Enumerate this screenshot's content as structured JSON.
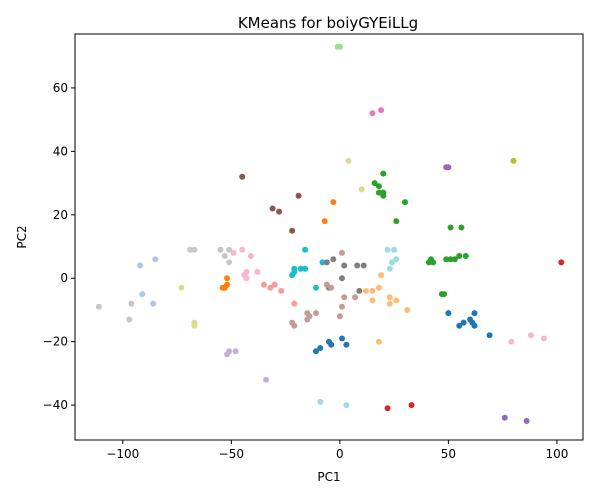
{
  "chart_data": {
    "type": "scatter",
    "title": "KMeans for boiyGYEiLLg",
    "xlabel": "PC1",
    "ylabel": "PC2",
    "xlim": [
      -122,
      112
    ],
    "ylim": [
      -51,
      77
    ],
    "xticks": [
      -100,
      -50,
      0,
      50,
      100
    ],
    "yticks": [
      -40,
      -20,
      0,
      20,
      40,
      60
    ],
    "grid": false,
    "legend": "none",
    "points": [
      {
        "x": -1,
        "y": 73,
        "color": "#98df8a"
      },
      {
        "x": 0,
        "y": 73,
        "color": "#98df8a"
      },
      {
        "x": 15,
        "y": 52,
        "color": "#e377c2"
      },
      {
        "x": 19,
        "y": 53,
        "color": "#e377c2"
      },
      {
        "x": 4,
        "y": 37,
        "color": "#dbdb8d"
      },
      {
        "x": 10,
        "y": 28,
        "color": "#dbdb8d"
      },
      {
        "x": 80,
        "y": 37,
        "color": "#bcbd22"
      },
      {
        "x": -45,
        "y": 32,
        "color": "#8c564b"
      },
      {
        "x": -31,
        "y": 22,
        "color": "#8c564b"
      },
      {
        "x": -28,
        "y": 21,
        "color": "#8c564b"
      },
      {
        "x": -19,
        "y": 26,
        "color": "#8c564b"
      },
      {
        "x": -22,
        "y": 15,
        "color": "#8c564b"
      },
      {
        "x": -3,
        "y": 24,
        "color": "#ff7f0e"
      },
      {
        "x": -7,
        "y": 18,
        "color": "#ff7f0e"
      },
      {
        "x": 49,
        "y": 35,
        "color": "#9467bd"
      },
      {
        "x": 50,
        "y": 35,
        "color": "#9467bd"
      },
      {
        "x": 16,
        "y": 30,
        "color": "#2ca02c"
      },
      {
        "x": 18,
        "y": 29,
        "color": "#2ca02c"
      },
      {
        "x": 20,
        "y": 33,
        "color": "#2ca02c"
      },
      {
        "x": 20,
        "y": 27,
        "color": "#2ca02c"
      },
      {
        "x": 18,
        "y": 27,
        "color": "#2ca02c"
      },
      {
        "x": 20,
        "y": 26,
        "color": "#2ca02c"
      },
      {
        "x": 30,
        "y": 24,
        "color": "#2ca02c"
      },
      {
        "x": 26,
        "y": 18,
        "color": "#2ca02c"
      },
      {
        "x": 51,
        "y": 16,
        "color": "#2ca02c"
      },
      {
        "x": 56,
        "y": 16,
        "color": "#2ca02c"
      },
      {
        "x": 41,
        "y": 5,
        "color": "#2ca02c"
      },
      {
        "x": 43,
        "y": 5,
        "color": "#2ca02c"
      },
      {
        "x": 42,
        "y": 6,
        "color": "#2ca02c"
      },
      {
        "x": 49,
        "y": 6,
        "color": "#2ca02c"
      },
      {
        "x": 51,
        "y": 6,
        "color": "#2ca02c"
      },
      {
        "x": 53,
        "y": 6,
        "color": "#2ca02c"
      },
      {
        "x": 55,
        "y": 7,
        "color": "#2ca02c"
      },
      {
        "x": 58,
        "y": 7,
        "color": "#2ca02c"
      },
      {
        "x": 48,
        "y": -5,
        "color": "#2ca02c"
      },
      {
        "x": 47,
        "y": -5,
        "color": "#2ca02c"
      },
      {
        "x": 102,
        "y": 5,
        "color": "#d62728"
      },
      {
        "x": 22,
        "y": 9,
        "color": "#9edae5"
      },
      {
        "x": 25,
        "y": 9,
        "color": "#9edae5"
      },
      {
        "x": 23,
        "y": 3,
        "color": "#9edae5"
      },
      {
        "x": 24,
        "y": 5,
        "color": "#9edae5"
      },
      {
        "x": 26,
        "y": 6,
        "color": "#9edae5"
      },
      {
        "x": -16,
        "y": 9,
        "color": "#17becf"
      },
      {
        "x": -21,
        "y": 3,
        "color": "#17becf"
      },
      {
        "x": -21,
        "y": 2,
        "color": "#17becf"
      },
      {
        "x": -18,
        "y": 3,
        "color": "#17becf"
      },
      {
        "x": -16,
        "y": 3,
        "color": "#17becf"
      },
      {
        "x": -22,
        "y": 1,
        "color": "#17becf"
      },
      {
        "x": -11,
        "y": -3,
        "color": "#17becf"
      },
      {
        "x": -8,
        "y": 5,
        "color": "#17becf"
      },
      {
        "x": -6,
        "y": 5,
        "color": "#7f7f7f"
      },
      {
        "x": -3,
        "y": 6,
        "color": "#7f7f7f"
      },
      {
        "x": 2,
        "y": 4,
        "color": "#7f7f7f"
      },
      {
        "x": 8,
        "y": 4,
        "color": "#7f7f7f"
      },
      {
        "x": 11,
        "y": 4,
        "color": "#7f7f7f"
      },
      {
        "x": 1,
        "y": 0,
        "color": "#7f7f7f"
      },
      {
        "x": 9,
        "y": -4,
        "color": "#7f7f7f"
      },
      {
        "x": -5,
        "y": -3,
        "color": "#7f7f7f"
      },
      {
        "x": -55,
        "y": 9,
        "color": "#c7c7c7"
      },
      {
        "x": -51,
        "y": 9,
        "color": "#c7c7c7"
      },
      {
        "x": -69,
        "y": 9,
        "color": "#c7c7c7"
      },
      {
        "x": -67,
        "y": 9,
        "color": "#c7c7c7"
      },
      {
        "x": -53,
        "y": 7,
        "color": "#c7c7c7"
      },
      {
        "x": -51,
        "y": 5,
        "color": "#c7c7c7"
      },
      {
        "x": -111,
        "y": -9,
        "color": "#c7c7c7"
      },
      {
        "x": -96,
        "y": -8,
        "color": "#c7c7c7"
      },
      {
        "x": -97,
        "y": -13,
        "color": "#c7c7c7"
      },
      {
        "x": -92,
        "y": 4,
        "color": "#aec7e8"
      },
      {
        "x": -85,
        "y": 6,
        "color": "#aec7e8"
      },
      {
        "x": -91,
        "y": -5,
        "color": "#aec7e8"
      },
      {
        "x": -86,
        "y": -8,
        "color": "#aec7e8"
      },
      {
        "x": -73,
        "y": -3,
        "color": "#dbdb8d"
      },
      {
        "x": -67,
        "y": -14,
        "color": "#dbdb8d"
      },
      {
        "x": -67,
        "y": -15,
        "color": "#dbdb8d"
      },
      {
        "x": -54,
        "y": -3,
        "color": "#ff7f0e"
      },
      {
        "x": -53,
        "y": -3,
        "color": "#ff7f0e"
      },
      {
        "x": -52,
        "y": -2,
        "color": "#ff7f0e"
      },
      {
        "x": -52,
        "y": 0,
        "color": "#ff7f0e"
      },
      {
        "x": -49,
        "y": 8,
        "color": "#f7b6d2"
      },
      {
        "x": -45,
        "y": 9,
        "color": "#f7b6d2"
      },
      {
        "x": -41,
        "y": 7,
        "color": "#f7b6d2"
      },
      {
        "x": -43,
        "y": 2,
        "color": "#f7b6d2"
      },
      {
        "x": -44,
        "y": 1,
        "color": "#f7b6d2"
      },
      {
        "x": -38,
        "y": 2,
        "color": "#f7b6d2"
      },
      {
        "x": -43,
        "y": 0,
        "color": "#f7b6d2"
      },
      {
        "x": -35,
        "y": -2,
        "color": "#ff9896"
      },
      {
        "x": -32,
        "y": -3,
        "color": "#ff9896"
      },
      {
        "x": -30,
        "y": -2,
        "color": "#ff9896"
      },
      {
        "x": -27,
        "y": -4,
        "color": "#ff9896"
      },
      {
        "x": -21,
        "y": -8,
        "color": "#ff9896"
      },
      {
        "x": -22,
        "y": -14,
        "color": "#c49c94"
      },
      {
        "x": -21,
        "y": -15,
        "color": "#c49c94"
      },
      {
        "x": -15,
        "y": -11,
        "color": "#c49c94"
      },
      {
        "x": -15,
        "y": -13,
        "color": "#c49c94"
      },
      {
        "x": -14,
        "y": -12,
        "color": "#c49c94"
      },
      {
        "x": -11,
        "y": -11,
        "color": "#c49c94"
      },
      {
        "x": -6,
        "y": -2,
        "color": "#c49c94"
      },
      {
        "x": -4,
        "y": -3,
        "color": "#c49c94"
      },
      {
        "x": 1,
        "y": -9,
        "color": "#c49c94"
      },
      {
        "x": 0,
        "y": -12,
        "color": "#c49c94"
      },
      {
        "x": 2,
        "y": -6,
        "color": "#c49c94"
      },
      {
        "x": 7,
        "y": -6,
        "color": "#c49c94"
      },
      {
        "x": 1,
        "y": 8,
        "color": "#c49c94"
      },
      {
        "x": 12,
        "y": -4,
        "color": "#ffbb78"
      },
      {
        "x": 15,
        "y": -4,
        "color": "#ffbb78"
      },
      {
        "x": 15,
        "y": -7,
        "color": "#ffbb78"
      },
      {
        "x": 19,
        "y": 1,
        "color": "#ffbb78"
      },
      {
        "x": 18,
        "y": -3,
        "color": "#ffbb78"
      },
      {
        "x": 23,
        "y": -6,
        "color": "#ffbb78"
      },
      {
        "x": 23,
        "y": -8,
        "color": "#ffbb78"
      },
      {
        "x": 26,
        "y": -7,
        "color": "#ffbb78"
      },
      {
        "x": 31,
        "y": -10,
        "color": "#ffbb78"
      },
      {
        "x": 18,
        "y": -20,
        "color": "#ffbb78"
      },
      {
        "x": -11,
        "y": -23,
        "color": "#1f77b4"
      },
      {
        "x": -9,
        "y": -22,
        "color": "#1f77b4"
      },
      {
        "x": -5,
        "y": -20,
        "color": "#1f77b4"
      },
      {
        "x": -4,
        "y": -21,
        "color": "#1f77b4"
      },
      {
        "x": 1,
        "y": -19,
        "color": "#1f77b4"
      },
      {
        "x": 3,
        "y": -21,
        "color": "#1f77b4"
      },
      {
        "x": 50,
        "y": -11,
        "color": "#1f77b4"
      },
      {
        "x": 55,
        "y": -15,
        "color": "#1f77b4"
      },
      {
        "x": 57,
        "y": -14,
        "color": "#1f77b4"
      },
      {
        "x": 60,
        "y": -13,
        "color": "#1f77b4"
      },
      {
        "x": 61,
        "y": -14,
        "color": "#1f77b4"
      },
      {
        "x": 62,
        "y": -15,
        "color": "#1f77b4"
      },
      {
        "x": 62,
        "y": -11,
        "color": "#1f77b4"
      },
      {
        "x": 69,
        "y": -18,
        "color": "#1f77b4"
      },
      {
        "x": 79,
        "y": -20,
        "color": "#f7b6d2"
      },
      {
        "x": 88,
        "y": -18,
        "color": "#f7b6d2"
      },
      {
        "x": 94,
        "y": -19,
        "color": "#f7b6d2"
      },
      {
        "x": -52,
        "y": -24,
        "color": "#c5b0d5"
      },
      {
        "x": -51,
        "y": -23,
        "color": "#c5b0d5"
      },
      {
        "x": -48,
        "y": -23,
        "color": "#c5b0d5"
      },
      {
        "x": -34,
        "y": -32,
        "color": "#c5b0d5"
      },
      {
        "x": -9,
        "y": -39,
        "color": "#9edae5"
      },
      {
        "x": 3,
        "y": -40,
        "color": "#9edae5"
      },
      {
        "x": 22,
        "y": -41,
        "color": "#d62728"
      },
      {
        "x": 33,
        "y": -40,
        "color": "#d62728"
      },
      {
        "x": 76,
        "y": -44,
        "color": "#9467bd"
      },
      {
        "x": 86,
        "y": -45,
        "color": "#9467bd"
      }
    ]
  }
}
